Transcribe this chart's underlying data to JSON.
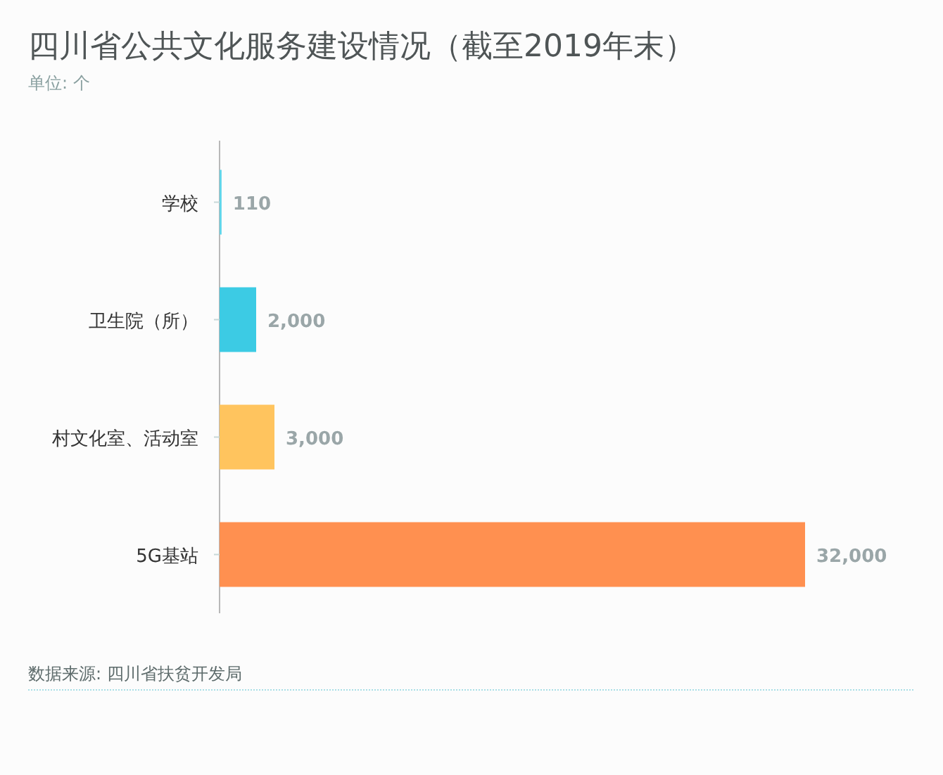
{
  "chart_data": {
    "type": "bar",
    "orientation": "horizontal",
    "title": "四川省公共文化服务建设情况（截至2019年末）",
    "subtitle": "单位: 个",
    "annotations": [
      "数据来源: 四川省扶贫开发局"
    ],
    "categories": [
      "学校",
      "卫生院（所）",
      "村文化室、活动室",
      "5G基站"
    ],
    "values": [
      110,
      2000,
      3000,
      32000
    ],
    "colors": [
      "#5fd6ea",
      "#3ccbe4",
      "#ffc45e",
      "#ff9050"
    ],
    "value_labels": [
      "110",
      "2,000",
      "3,000",
      "32,000"
    ]
  }
}
